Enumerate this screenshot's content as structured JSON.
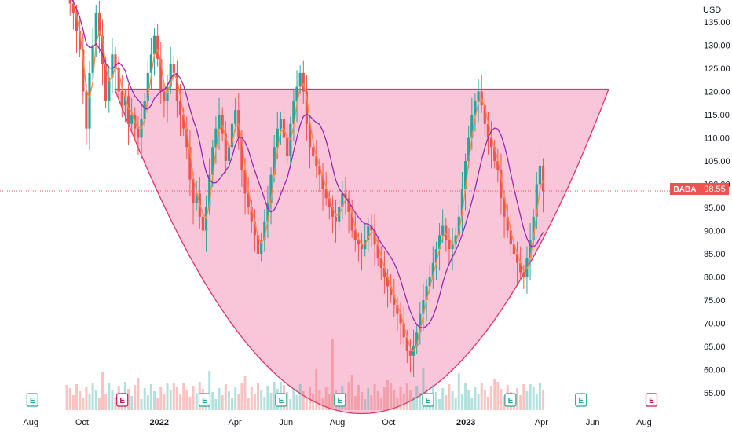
{
  "chart_data": {
    "type": "candlestick",
    "currency": "USD",
    "symbol": "BABA",
    "last_price": 98.55,
    "ylim": [
      50.5,
      141.5
    ],
    "y_ticks": [
      55,
      60,
      65,
      70,
      75,
      80,
      85,
      90,
      95,
      100,
      105,
      110,
      115,
      120,
      125,
      130,
      135
    ],
    "x_ticks": [
      "Aug",
      "Oct",
      "2022",
      "Apr",
      "Jun",
      "Aug",
      "Oct",
      "2023",
      "Apr",
      "Jun",
      "Aug"
    ],
    "date_range": [
      "2021-07-01",
      "2023-08-31"
    ],
    "price_start": "2021-09-13",
    "price_end": "2023-04-03",
    "close_prices": [
      142,
      139,
      137,
      133,
      129,
      120,
      112,
      124,
      130,
      137,
      132,
      126,
      118,
      123,
      128,
      125,
      120,
      117,
      119,
      113,
      115,
      112,
      110,
      114,
      118,
      124,
      128,
      132,
      127,
      120,
      118,
      121,
      126,
      124,
      118,
      115,
      112,
      108,
      101,
      96,
      98,
      93,
      90,
      95,
      102,
      108,
      112,
      115,
      111,
      105,
      108,
      113,
      116,
      110,
      103,
      98,
      95,
      92,
      89,
      85,
      88,
      92,
      96,
      102,
      108,
      112,
      114,
      110,
      106,
      113,
      118,
      121,
      124,
      120,
      113,
      108,
      106,
      104,
      102,
      99,
      97,
      95,
      93,
      92,
      95,
      98,
      97,
      94,
      90,
      88,
      87,
      86,
      88,
      91,
      90,
      87,
      84,
      82,
      80,
      78,
      76,
      74,
      72,
      70,
      67,
      64,
      63,
      65,
      68,
      72,
      75,
      78,
      80,
      83,
      86,
      89,
      91,
      88,
      86,
      87,
      89,
      93,
      99,
      105,
      110,
      115,
      118,
      120,
      117,
      113,
      110,
      108,
      105,
      103,
      97,
      93,
      90,
      87,
      85,
      83,
      81,
      80,
      84,
      88,
      93,
      100,
      104,
      98.55
    ],
    "volume_bars": 150,
    "earnings_markers": [
      "E",
      "E",
      "E",
      "E",
      "E",
      "E",
      "E",
      "E",
      "E"
    ],
    "cup_pattern": {
      "rim_price": 120.5,
      "bottom_price": 50.5,
      "rim_start": "2021-11-09",
      "rim_end": "2023-06-20"
    }
  },
  "colors": {
    "up": "#26a69a",
    "down": "#ef5350",
    "ma_fast": "#f7894a",
    "ma_slow": "#9c27b0",
    "cup_fill": "#f7bcd1",
    "cup_stroke": "#e0336b",
    "price_tag": "#ef5350",
    "earnings_green": "#26a69a",
    "earnings_pink": "#c2185b"
  }
}
